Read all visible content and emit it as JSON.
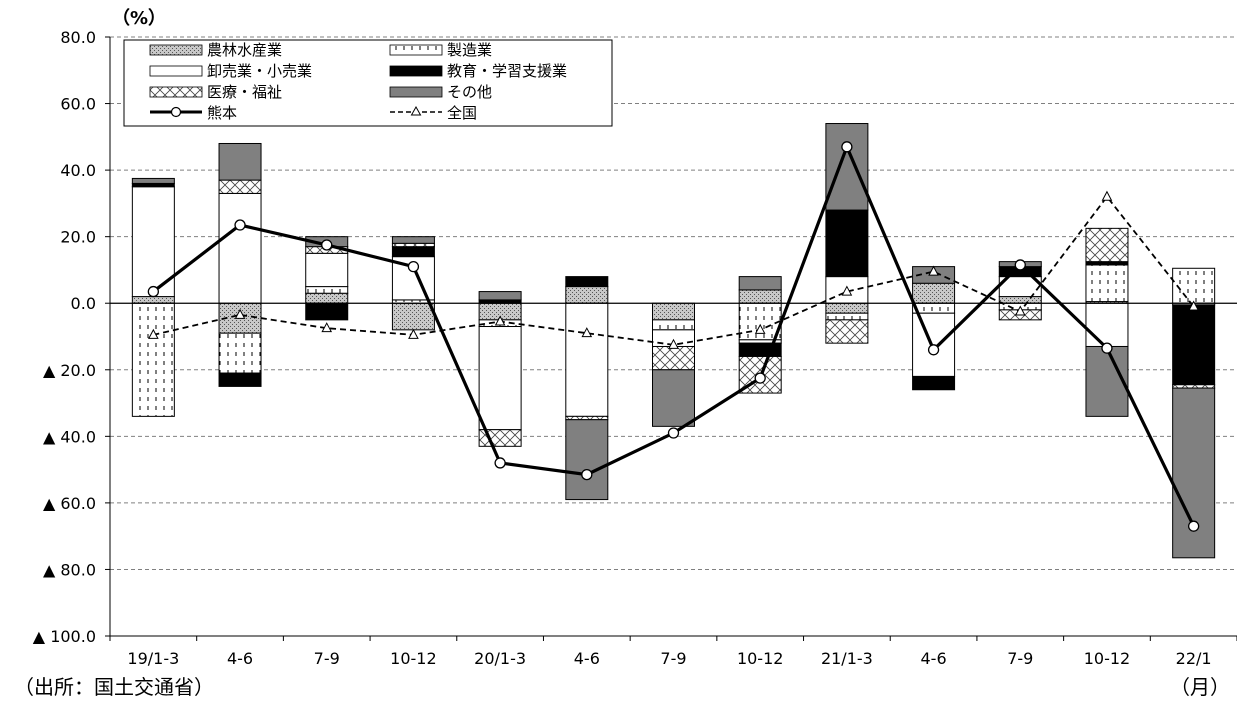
{
  "unit_label": "（%）",
  "source_label": "（出所：国土交通省）",
  "month_label": "（月）",
  "colors": {
    "agri": "#c8c8c8",
    "manufacturing": "#ffffff",
    "wholesale": "#ffffff",
    "education": "#000000",
    "medical": "#ffffff",
    "other": "#808080",
    "kumamoto": "#000000",
    "national": "#000000"
  },
  "chart_data": {
    "type": "bar",
    "subtype": "stacked-bar-with-lines",
    "ylim": [
      -100,
      80
    ],
    "yticks": [
      80,
      60,
      40,
      20,
      0,
      -20,
      -40,
      -60,
      -80,
      -100
    ],
    "ytick_labels": [
      "80.0",
      "60.0",
      "40.0",
      "20.0",
      "0.0",
      "▲ 20.0",
      "▲ 40.0",
      "▲ 60.0",
      "▲ 80.0",
      "▲ 100.0"
    ],
    "grid": true,
    "legend_position": "top-left",
    "categories": [
      "19/1-3",
      "4-6",
      "7-9",
      "10-12",
      "20/1-3",
      "4-6",
      "7-9",
      "10-12",
      "21/1-3",
      "4-6",
      "7-9",
      "10-12",
      "22/1"
    ],
    "series": [
      {
        "key": "agri",
        "name": "農林水産業",
        "kind": "bar",
        "values": [
          2,
          -9,
          3,
          -8,
          -5,
          5,
          -5,
          4,
          -3,
          6,
          2,
          0.5,
          0
        ]
      },
      {
        "key": "manufacturing",
        "name": "製造業",
        "kind": "bar",
        "values": [
          -34,
          -12,
          2,
          1,
          -2,
          0,
          -3,
          -11,
          -2,
          -3,
          -2,
          11,
          10.5
        ]
      },
      {
        "key": "wholesale",
        "name": "卸売業・小売業",
        "kind": "bar",
        "values": [
          33,
          33,
          10,
          13,
          -31,
          -34,
          -5,
          -1,
          8,
          -19,
          6,
          -13,
          -0.5
        ]
      },
      {
        "key": "education",
        "name": "教育・学習支援業",
        "kind": "bar",
        "values": [
          1,
          -4,
          -5,
          3,
          1,
          3,
          0,
          -4,
          20,
          -4,
          3,
          1,
          -24
        ]
      },
      {
        "key": "medical",
        "name": "医療・福祉",
        "kind": "bar",
        "values": [
          0,
          4,
          2,
          1,
          -5,
          -1,
          -7,
          -11,
          -7,
          0,
          -3,
          10,
          -1
        ]
      },
      {
        "key": "other",
        "name": "その他",
        "kind": "bar",
        "values": [
          1.5,
          11,
          3,
          2,
          2.5,
          -24,
          -17,
          4,
          26,
          5,
          1.5,
          -21,
          -51
        ]
      },
      {
        "key": "kumamoto",
        "name": "熊本",
        "kind": "line",
        "values": [
          3.5,
          23.5,
          17.5,
          11,
          -48,
          -51.5,
          -39,
          -22.5,
          47,
          -14,
          11.5,
          -13.5,
          -67
        ]
      },
      {
        "key": "national",
        "name": "全国",
        "kind": "line",
        "values": [
          -9.5,
          -3.5,
          -7.5,
          -9.5,
          -5.5,
          -9,
          -12.5,
          -8,
          3.5,
          9.5,
          -2.5,
          32,
          -1
        ]
      }
    ]
  }
}
